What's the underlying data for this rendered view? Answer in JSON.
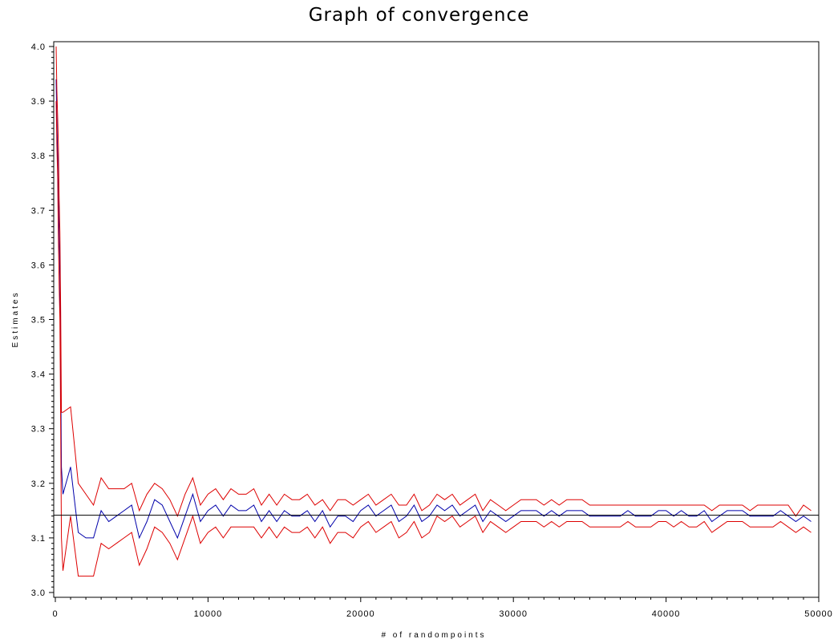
{
  "chart_data": {
    "type": "line",
    "title": "Graph of convergence",
    "xlabel": "# of randompoints",
    "ylabel": "Estimates",
    "xlim": [
      0,
      50000
    ],
    "ylim": [
      3.0,
      4.0
    ],
    "x_ticks": [
      0,
      10000,
      20000,
      30000,
      40000,
      50000
    ],
    "x_tick_labels": [
      "0",
      "10000",
      "20000",
      "30000",
      "40000",
      "50000"
    ],
    "y_ticks": [
      3.0,
      3.1,
      3.2,
      3.3,
      3.4,
      3.5,
      3.6,
      3.7,
      3.8,
      3.9,
      4.0
    ],
    "y_tick_labels": [
      "3.0",
      "3.1",
      "3.2",
      "3.3",
      "3.4",
      "3.5",
      "3.6",
      "3.7",
      "3.8",
      "3.9",
      "4.0"
    ],
    "grid": false,
    "legend": "none",
    "reference_line": {
      "y": 3.1416,
      "color": "#000000"
    },
    "x": [
      50,
      100,
      150,
      200,
      250,
      300,
      350,
      400,
      500,
      1000,
      1500,
      2000,
      2500,
      3000,
      3500,
      4000,
      4500,
      5000,
      5500,
      6000,
      6500,
      7000,
      7500,
      8000,
      8500,
      9000,
      9500,
      10000,
      10500,
      11000,
      11500,
      12000,
      12500,
      13000,
      13500,
      14000,
      14500,
      15000,
      15500,
      16000,
      16500,
      17000,
      17500,
      18000,
      18500,
      19000,
      19500,
      20000,
      20500,
      21000,
      21500,
      22000,
      22500,
      23000,
      23500,
      24000,
      24500,
      25000,
      25500,
      26000,
      26500,
      27000,
      27500,
      28000,
      28500,
      29000,
      29500,
      30000,
      30500,
      31000,
      31500,
      32000,
      32500,
      33000,
      33500,
      34000,
      34500,
      35000,
      35500,
      36000,
      36500,
      37000,
      37500,
      38000,
      38500,
      39000,
      39500,
      40000,
      40500,
      41000,
      41500,
      42000,
      42500,
      43000,
      43500,
      44000,
      44500,
      45000,
      45500,
      46000,
      46500,
      47000,
      47500,
      48000,
      48500,
      49000,
      49500
    ],
    "series": [
      {
        "color": "#0000aa",
        "values": [
          3.94,
          3.86,
          3.8,
          3.72,
          3.65,
          3.58,
          3.41,
          3.23,
          3.18,
          3.23,
          3.11,
          3.1,
          3.1,
          3.15,
          3.13,
          3.14,
          3.15,
          3.16,
          3.1,
          3.13,
          3.17,
          3.16,
          3.13,
          3.1,
          3.14,
          3.18,
          3.13,
          3.15,
          3.16,
          3.14,
          3.16,
          3.15,
          3.15,
          3.16,
          3.13,
          3.15,
          3.13,
          3.15,
          3.14,
          3.14,
          3.15,
          3.13,
          3.15,
          3.12,
          3.14,
          3.14,
          3.13,
          3.15,
          3.16,
          3.14,
          3.15,
          3.16,
          3.13,
          3.14,
          3.16,
          3.13,
          3.14,
          3.16,
          3.15,
          3.16,
          3.14,
          3.15,
          3.16,
          3.13,
          3.15,
          3.14,
          3.13,
          3.14,
          3.15,
          3.15,
          3.15,
          3.14,
          3.15,
          3.14,
          3.15,
          3.15,
          3.15,
          3.14,
          3.14,
          3.14,
          3.14,
          3.14,
          3.15,
          3.14,
          3.14,
          3.14,
          3.15,
          3.15,
          3.14,
          3.15,
          3.14,
          3.14,
          3.15,
          3.13,
          3.14,
          3.15,
          3.15,
          3.15,
          3.14,
          3.14,
          3.14,
          3.14,
          3.15,
          3.14,
          3.13,
          3.14,
          3.13
        ]
      },
      {
        "color": "#dd0000",
        "values": [
          4.0,
          3.92,
          3.87,
          3.82,
          3.72,
          3.66,
          3.51,
          3.33,
          3.33,
          3.34,
          3.2,
          3.18,
          3.16,
          3.21,
          3.19,
          3.19,
          3.19,
          3.2,
          3.15,
          3.18,
          3.2,
          3.19,
          3.17,
          3.14,
          3.18,
          3.21,
          3.16,
          3.18,
          3.19,
          3.17,
          3.19,
          3.18,
          3.18,
          3.19,
          3.16,
          3.18,
          3.16,
          3.18,
          3.17,
          3.17,
          3.18,
          3.16,
          3.17,
          3.15,
          3.17,
          3.17,
          3.16,
          3.17,
          3.18,
          3.16,
          3.17,
          3.18,
          3.16,
          3.16,
          3.18,
          3.15,
          3.16,
          3.18,
          3.17,
          3.18,
          3.16,
          3.17,
          3.18,
          3.15,
          3.17,
          3.16,
          3.15,
          3.16,
          3.17,
          3.17,
          3.17,
          3.16,
          3.17,
          3.16,
          3.17,
          3.17,
          3.17,
          3.16,
          3.16,
          3.16,
          3.16,
          3.16,
          3.16,
          3.16,
          3.16,
          3.16,
          3.16,
          3.16,
          3.16,
          3.16,
          3.16,
          3.16,
          3.16,
          3.15,
          3.16,
          3.16,
          3.16,
          3.16,
          3.15,
          3.16,
          3.16,
          3.16,
          3.16,
          3.16,
          3.14,
          3.16,
          3.15
        ]
      },
      {
        "color": "#dd0000",
        "values": [
          3.9,
          3.82,
          3.76,
          3.65,
          3.56,
          3.5,
          3.3,
          3.1,
          3.04,
          3.14,
          3.03,
          3.03,
          3.03,
          3.09,
          3.08,
          3.09,
          3.1,
          3.11,
          3.05,
          3.08,
          3.12,
          3.11,
          3.09,
          3.06,
          3.1,
          3.14,
          3.09,
          3.11,
          3.12,
          3.1,
          3.12,
          3.12,
          3.12,
          3.12,
          3.1,
          3.12,
          3.1,
          3.12,
          3.11,
          3.11,
          3.12,
          3.1,
          3.12,
          3.09,
          3.11,
          3.11,
          3.1,
          3.12,
          3.13,
          3.11,
          3.12,
          3.13,
          3.1,
          3.11,
          3.13,
          3.1,
          3.11,
          3.14,
          3.13,
          3.14,
          3.12,
          3.13,
          3.14,
          3.11,
          3.13,
          3.12,
          3.11,
          3.12,
          3.13,
          3.13,
          3.13,
          3.12,
          3.13,
          3.12,
          3.13,
          3.13,
          3.13,
          3.12,
          3.12,
          3.12,
          3.12,
          3.12,
          3.13,
          3.12,
          3.12,
          3.12,
          3.13,
          3.13,
          3.12,
          3.13,
          3.12,
          3.12,
          3.13,
          3.11,
          3.12,
          3.13,
          3.13,
          3.13,
          3.12,
          3.12,
          3.12,
          3.12,
          3.13,
          3.12,
          3.11,
          3.12,
          3.11
        ]
      }
    ]
  }
}
